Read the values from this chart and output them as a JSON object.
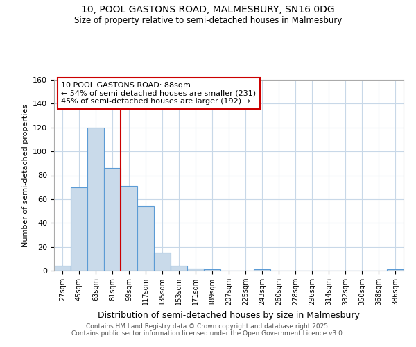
{
  "title_line1": "10, POOL GASTONS ROAD, MALMESBURY, SN16 0DG",
  "title_line2": "Size of property relative to semi-detached houses in Malmesbury",
  "xlabel": "Distribution of semi-detached houses by size in Malmesbury",
  "ylabel": "Number of semi-detached properties",
  "categories": [
    "27sqm",
    "45sqm",
    "63sqm",
    "81sqm",
    "99sqm",
    "117sqm",
    "135sqm",
    "153sqm",
    "171sqm",
    "189sqm",
    "207sqm",
    "225sqm",
    "243sqm",
    "260sqm",
    "278sqm",
    "296sqm",
    "314sqm",
    "332sqm",
    "350sqm",
    "368sqm",
    "386sqm"
  ],
  "values": [
    4,
    70,
    120,
    86,
    71,
    54,
    15,
    4,
    2,
    1,
    0,
    0,
    1,
    0,
    0,
    0,
    0,
    0,
    0,
    0,
    1
  ],
  "bar_color": "#c9daea",
  "bar_edge_color": "#5b9bd5",
  "grid_color": "#c8d8e8",
  "vline_x": 3.5,
  "vline_color": "#cc0000",
  "annotation_title": "10 POOL GASTONS ROAD: 88sqm",
  "annotation_line1": "← 54% of semi-detached houses are smaller (231)",
  "annotation_line2": "45% of semi-detached houses are larger (192) →",
  "annotation_box_color": "#ffffff",
  "annotation_box_edge": "#cc0000",
  "ylim": [
    0,
    160
  ],
  "yticks": [
    0,
    20,
    40,
    60,
    80,
    100,
    120,
    140,
    160
  ],
  "footer_line1": "Contains HM Land Registry data © Crown copyright and database right 2025.",
  "footer_line2": "Contains public sector information licensed under the Open Government Licence v3.0.",
  "bg_color": "#ffffff",
  "plot_bg_color": "#ffffff"
}
